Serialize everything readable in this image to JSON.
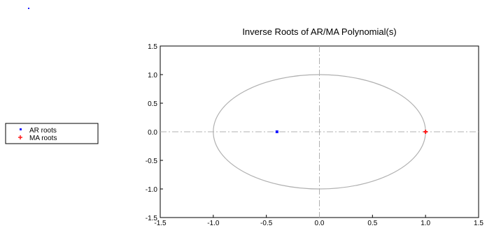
{
  "chart_data": {
    "type": "scatter",
    "title": "Inverse Roots of AR/MA Polynomial(s)",
    "xlabel": "",
    "ylabel": "",
    "xlim": [
      -1.5,
      1.5
    ],
    "ylim": [
      -1.5,
      1.5
    ],
    "x_ticks": [
      "-1.5",
      "-1.0",
      "-0.5",
      "0.0",
      "0.5",
      "1.0",
      "1.5"
    ],
    "y_ticks": [
      "1.5",
      "1.0",
      "0.5",
      "0.0",
      "-0.5",
      "-1.0",
      "-1.5"
    ],
    "unit_circle": {
      "radius": 1.0,
      "color": "#b0b0b0"
    },
    "zero_lines": {
      "style": "dash-dot",
      "color": "#b0b0b0"
    },
    "legend": {
      "placement": "left"
    },
    "series": [
      {
        "name": "AR roots",
        "marker": "dot",
        "color": "#1a1aff",
        "points": [
          {
            "x": -0.4,
            "y": 0.0
          }
        ]
      },
      {
        "name": "MA roots",
        "marker": "plus",
        "color": "#ff1a1a",
        "points": [
          {
            "x": 1.0,
            "y": 0.0
          }
        ]
      }
    ],
    "stray_mark_color": "#1a1aff"
  }
}
